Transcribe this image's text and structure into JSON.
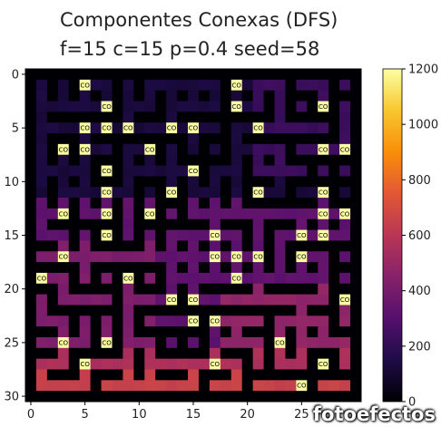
{
  "chart_data": {
    "type": "heatmap",
    "title_line1": "Componentes Conexas (DFS)",
    "title_line2": "f=15 c=15 p=0.4 seed=58",
    "x_ticks": [
      0,
      5,
      10,
      15,
      20,
      25
    ],
    "y_ticks": [
      0,
      5,
      10,
      15,
      20,
      25,
      30
    ],
    "colorbar": {
      "colormap": "inferno",
      "min": 0,
      "max": 1200,
      "ticks": [
        0,
        200,
        400,
        600,
        800,
        1000,
        1200
      ]
    },
    "cell_label": "CO",
    "grid_size": [
      31,
      31
    ],
    "grid_on": false
  },
  "watermark": "fotoefectos"
}
